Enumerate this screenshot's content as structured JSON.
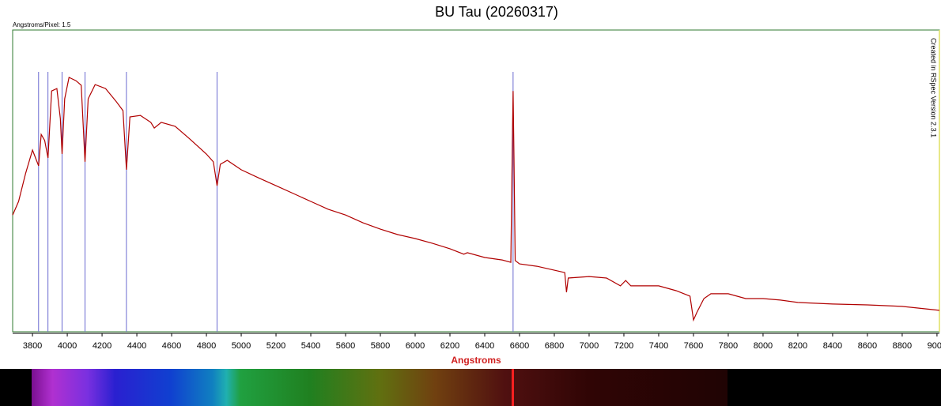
{
  "chart_data": {
    "type": "line",
    "title": "BU Tau  (20260317)",
    "subtitle": "Angstroms/Pixel: 1.5",
    "annotation": "Created in RSpec Version 2.3.1",
    "xlabel": "Angstroms",
    "x": [
      3686,
      3720,
      3760,
      3800,
      3835,
      3850,
      3870,
      3889,
      3910,
      3940,
      3960,
      3970,
      3985,
      4010,
      4050,
      4080,
      4102,
      4120,
      4160,
      4220,
      4280,
      4320,
      4340,
      4360,
      4420,
      4480,
      4500,
      4540,
      4620,
      4700,
      4800,
      4840,
      4861,
      4880,
      4920,
      5000,
      5100,
      5200,
      5300,
      5400,
      5500,
      5600,
      5700,
      5800,
      5900,
      6000,
      6100,
      6200,
      6280,
      6300,
      6400,
      6500,
      6550,
      6560,
      6563,
      6568,
      6575,
      6600,
      6700,
      6800,
      6860,
      6870,
      6880,
      7000,
      7100,
      7180,
      7210,
      7240,
      7400,
      7500,
      7580,
      7600,
      7620,
      7660,
      7700,
      7800,
      7900,
      8000,
      8100,
      8200,
      8400,
      8600,
      8800,
      9014
    ],
    "series": [
      {
        "color": "#b00000",
        "values": [
          38.7,
          43.2,
          52.4,
          60.2,
          55.0,
          65.4,
          63.4,
          57.6,
          79.8,
          80.6,
          70.7,
          58.9,
          77.2,
          84.3,
          83.2,
          81.7,
          56.3,
          77.2,
          81.9,
          80.6,
          76.4,
          73.3,
          53.7,
          71.2,
          71.7,
          69.4,
          67.5,
          69.4,
          68.1,
          64.1,
          58.9,
          56.3,
          48.4,
          55.5,
          56.8,
          53.7,
          51.0,
          48.4,
          45.8,
          43.2,
          40.6,
          38.7,
          36.1,
          34.0,
          32.2,
          30.9,
          29.3,
          27.5,
          25.7,
          26.2,
          24.6,
          23.8,
          23.0,
          68.1,
          79.8,
          57.6,
          23.6,
          22.5,
          21.7,
          20.4,
          19.6,
          13.1,
          17.8,
          18.3,
          17.8,
          15.2,
          17.0,
          15.2,
          15.2,
          13.6,
          11.8,
          3.9,
          6.5,
          11.0,
          12.6,
          12.6,
          11.0,
          11.0,
          10.5,
          9.7,
          9.2,
          8.9,
          8.4,
          7.1
        ]
      }
    ],
    "reference_lines": {
      "color": "#6a6ad0",
      "x": [
        3835,
        3889,
        3970,
        4102,
        4340,
        4861,
        6563
      ]
    },
    "xlim": [
      3686,
      9014
    ],
    "ylim": [
      0,
      100
    ],
    "xticks": [
      3800,
      4000,
      4200,
      4400,
      4600,
      4800,
      5000,
      5200,
      5400,
      5600,
      5800,
      6000,
      6200,
      6400,
      6600,
      6800,
      7000,
      7200,
      7400,
      7600,
      7800,
      8000,
      8200,
      8400,
      8600,
      8800,
      9000
    ],
    "frame_color": "#2f7a2f"
  }
}
